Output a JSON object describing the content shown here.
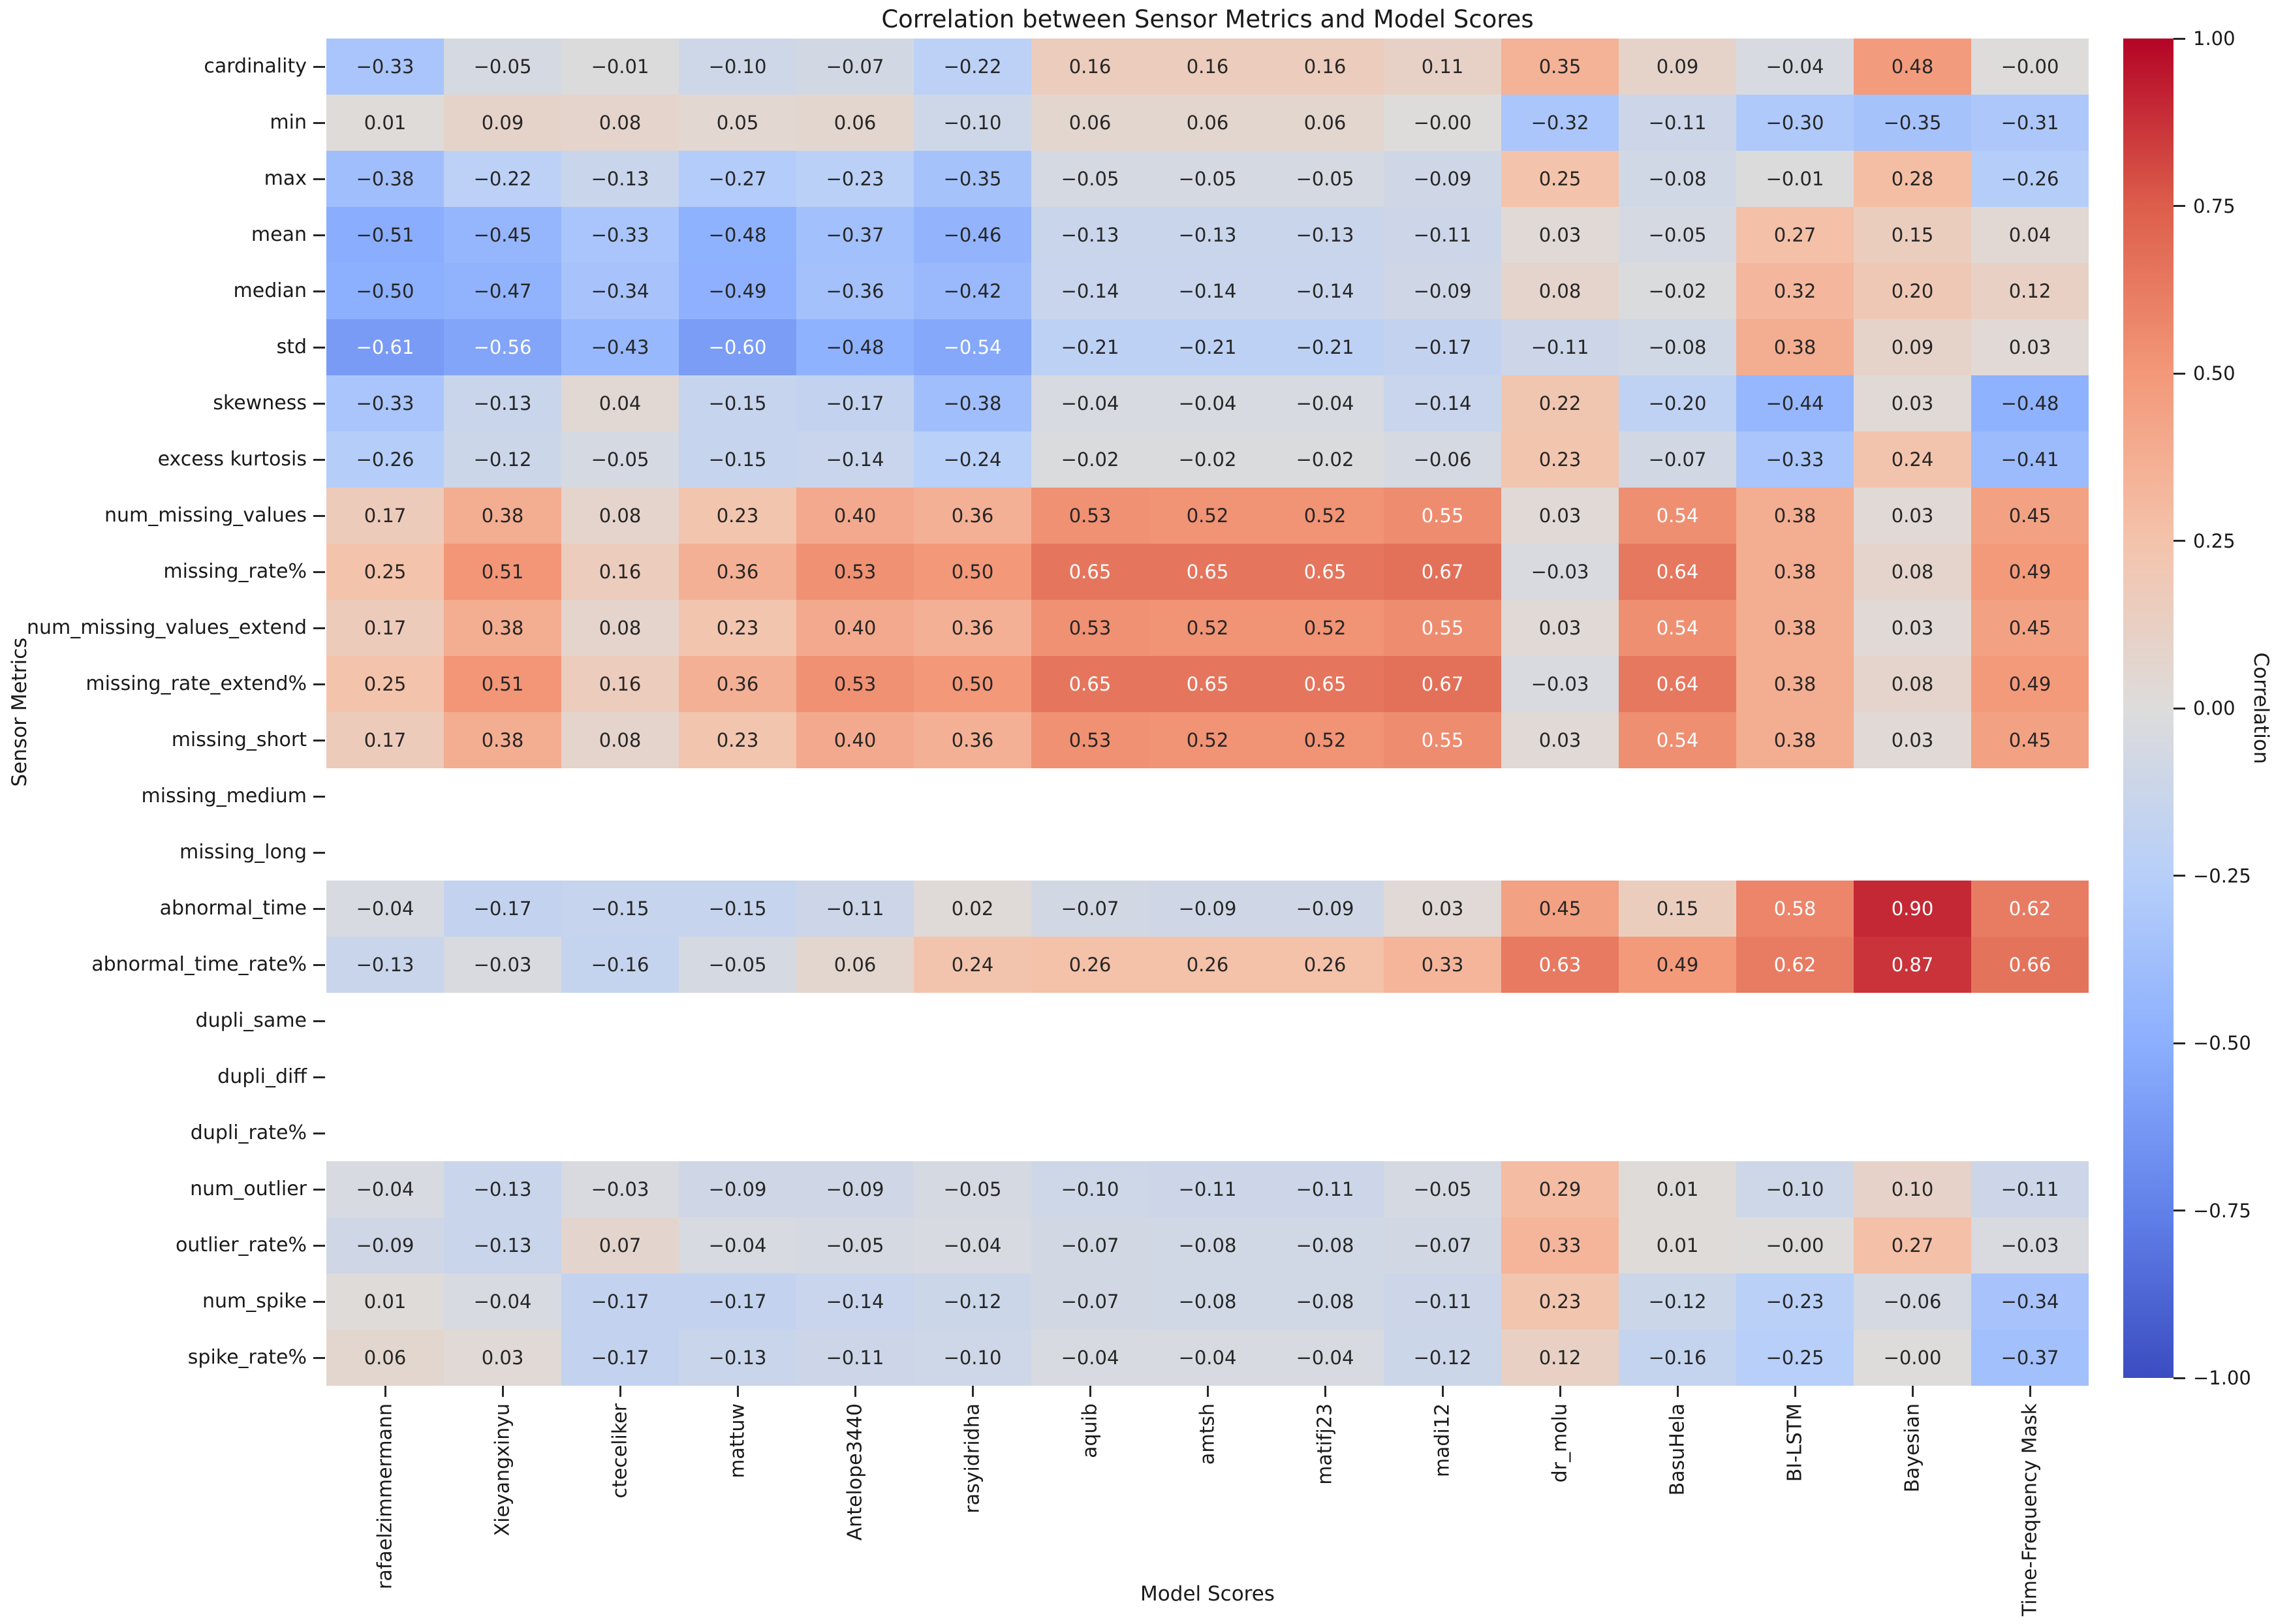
{
  "title": "Correlation between Sensor Metrics and Model Scores",
  "xlabel": "Model Scores",
  "ylabel": "Sensor Metrics",
  "colorbar": {
    "label": "Correlation",
    "ticks": [
      "1.00",
      "0.75",
      "0.50",
      "0.25",
      "0.00",
      "−0.25",
      "−0.50",
      "−0.75",
      "−1.00"
    ],
    "top_color": "#b40426",
    "mid_color": "#dddcdb",
    "bottom_color": "#3b4cc0"
  },
  "chart_data": {
    "type": "heatmap",
    "title": "Correlation between Sensor Metrics and Model Scores",
    "xlabel": "Model Scores",
    "ylabel": "Sensor Metrics",
    "colormap": "coolwarm",
    "vmin": -1.0,
    "vmax": 1.0,
    "annotation_format": "2 decimals, unicode minus",
    "x_categories": [
      "rafaelzimmermann",
      "Xieyangxinyu",
      "cteceliker",
      "mattuw",
      "Antelope3440",
      "rasyidridha",
      "aquib",
      "amtsh",
      "matifj23",
      "madi12",
      "dr_molu",
      "BasuHela",
      "BI-LSTM",
      "Bayesian",
      "Time-Frequency Mask"
    ],
    "y_categories": [
      "cardinality",
      "min",
      "max",
      "mean",
      "median",
      "std",
      "skewness",
      "excess kurtosis",
      "num_missing_values",
      "missing_rate%",
      "num_missing_values_extend",
      "missing_rate_extend%",
      "missing_short",
      "missing_medium",
      "missing_long",
      "abnormal_time",
      "abnormal_time_rate%",
      "dupli_same",
      "dupli_diff",
      "dupli_rate%",
      "num_outlier",
      "outlier_rate%",
      "num_spike",
      "spike_rate%"
    ],
    "values": [
      [
        -0.33,
        -0.05,
        -0.01,
        -0.1,
        -0.07,
        -0.22,
        0.16,
        0.16,
        0.16,
        0.11,
        0.35,
        0.09,
        -0.04,
        0.48,
        -0.0
      ],
      [
        0.01,
        0.09,
        0.08,
        0.05,
        0.06,
        -0.1,
        0.06,
        0.06,
        0.06,
        -0.0,
        -0.32,
        -0.11,
        -0.3,
        -0.35,
        -0.31
      ],
      [
        -0.38,
        -0.22,
        -0.13,
        -0.27,
        -0.23,
        -0.35,
        -0.05,
        -0.05,
        -0.05,
        -0.09,
        0.25,
        -0.08,
        -0.01,
        0.28,
        -0.26
      ],
      [
        -0.51,
        -0.45,
        -0.33,
        -0.48,
        -0.37,
        -0.46,
        -0.13,
        -0.13,
        -0.13,
        -0.11,
        0.03,
        -0.05,
        0.27,
        0.15,
        0.04
      ],
      [
        -0.5,
        -0.47,
        -0.34,
        -0.49,
        -0.36,
        -0.42,
        -0.14,
        -0.14,
        -0.14,
        -0.09,
        0.08,
        -0.02,
        0.32,
        0.2,
        0.12
      ],
      [
        -0.61,
        -0.56,
        -0.43,
        -0.6,
        -0.48,
        -0.54,
        -0.21,
        -0.21,
        -0.21,
        -0.17,
        -0.11,
        -0.08,
        0.38,
        0.09,
        0.03
      ],
      [
        -0.33,
        -0.13,
        0.04,
        -0.15,
        -0.17,
        -0.38,
        -0.04,
        -0.04,
        -0.04,
        -0.14,
        0.22,
        -0.2,
        -0.44,
        0.03,
        -0.48
      ],
      [
        -0.26,
        -0.12,
        -0.05,
        -0.15,
        -0.14,
        -0.24,
        -0.02,
        -0.02,
        -0.02,
        -0.06,
        0.23,
        -0.07,
        -0.33,
        0.24,
        -0.41
      ],
      [
        0.17,
        0.38,
        0.08,
        0.23,
        0.4,
        0.36,
        0.53,
        0.52,
        0.52,
        0.55,
        0.03,
        0.54,
        0.38,
        0.03,
        0.45
      ],
      [
        0.25,
        0.51,
        0.16,
        0.36,
        0.53,
        0.5,
        0.65,
        0.65,
        0.65,
        0.67,
        -0.03,
        0.64,
        0.38,
        0.08,
        0.49
      ],
      [
        0.17,
        0.38,
        0.08,
        0.23,
        0.4,
        0.36,
        0.53,
        0.52,
        0.52,
        0.55,
        0.03,
        0.54,
        0.38,
        0.03,
        0.45
      ],
      [
        0.25,
        0.51,
        0.16,
        0.36,
        0.53,
        0.5,
        0.65,
        0.65,
        0.65,
        0.67,
        -0.03,
        0.64,
        0.38,
        0.08,
        0.49
      ],
      [
        0.17,
        0.38,
        0.08,
        0.23,
        0.4,
        0.36,
        0.53,
        0.52,
        0.52,
        0.55,
        0.03,
        0.54,
        0.38,
        0.03,
        0.45
      ],
      [
        null,
        null,
        null,
        null,
        null,
        null,
        null,
        null,
        null,
        null,
        null,
        null,
        null,
        null,
        null
      ],
      [
        null,
        null,
        null,
        null,
        null,
        null,
        null,
        null,
        null,
        null,
        null,
        null,
        null,
        null,
        null
      ],
      [
        -0.04,
        -0.17,
        -0.15,
        -0.15,
        -0.11,
        0.02,
        -0.07,
        -0.09,
        -0.09,
        0.03,
        0.45,
        0.15,
        0.58,
        0.9,
        0.62
      ],
      [
        -0.13,
        -0.03,
        -0.16,
        -0.05,
        0.06,
        0.24,
        0.26,
        0.26,
        0.26,
        0.33,
        0.63,
        0.49,
        0.62,
        0.87,
        0.66
      ],
      [
        null,
        null,
        null,
        null,
        null,
        null,
        null,
        null,
        null,
        null,
        null,
        null,
        null,
        null,
        null
      ],
      [
        null,
        null,
        null,
        null,
        null,
        null,
        null,
        null,
        null,
        null,
        null,
        null,
        null,
        null,
        null
      ],
      [
        null,
        null,
        null,
        null,
        null,
        null,
        null,
        null,
        null,
        null,
        null,
        null,
        null,
        null,
        null
      ],
      [
        -0.04,
        -0.13,
        -0.03,
        -0.09,
        -0.09,
        -0.05,
        -0.1,
        -0.11,
        -0.11,
        -0.05,
        0.29,
        0.01,
        -0.1,
        0.1,
        -0.11
      ],
      [
        -0.09,
        -0.13,
        0.07,
        -0.04,
        -0.05,
        -0.04,
        -0.07,
        -0.08,
        -0.08,
        -0.07,
        0.33,
        0.01,
        -0.0,
        0.27,
        -0.03
      ],
      [
        0.01,
        -0.04,
        -0.17,
        -0.17,
        -0.14,
        -0.12,
        -0.07,
        -0.08,
        -0.08,
        -0.11,
        0.23,
        -0.12,
        -0.23,
        -0.06,
        -0.34
      ],
      [
        0.06,
        0.03,
        -0.17,
        -0.13,
        -0.11,
        -0.1,
        -0.04,
        -0.04,
        -0.04,
        -0.12,
        0.12,
        -0.16,
        -0.25,
        -0.0,
        -0.37
      ]
    ],
    "legend": "none",
    "grid": false,
    "colorbar_position": "right"
  }
}
